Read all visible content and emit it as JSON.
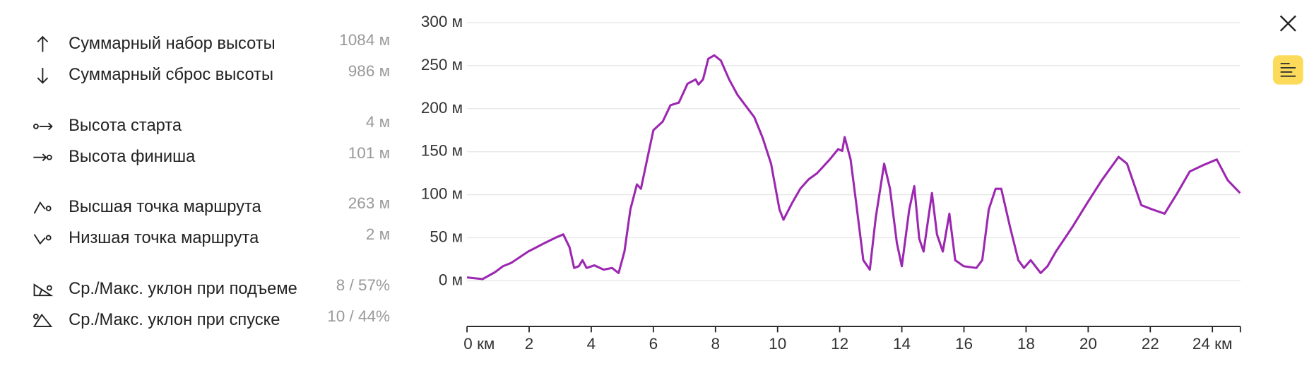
{
  "stats": [
    {
      "label": "Суммарный набор высоты",
      "value": "1084 м"
    },
    {
      "label": "Суммарный сброс высоты",
      "value": "986 м"
    },
    {
      "label": "Высота старта",
      "value": "4 м"
    },
    {
      "label": "Высота финиша",
      "value": "101 м"
    },
    {
      "label": "Высшая точка маршрута",
      "value": "263 м"
    },
    {
      "label": "Низшая точка маршрута",
      "value": "2 м"
    },
    {
      "label": "Ср./Макс. уклон при подъеме",
      "value": "8 / 57%"
    },
    {
      "label": "Ср./Макс. уклон при спуске",
      "value": "10 / 44%"
    }
  ],
  "chart_data": {
    "type": "line",
    "color": "#9c27b0",
    "grid": true,
    "x": [
      0,
      0.5,
      0.9,
      1.16,
      1.43,
      1.97,
      2.5,
      2.9,
      3.1,
      3.3,
      3.45,
      3.6,
      3.72,
      3.85,
      4.1,
      4.4,
      4.67,
      4.88,
      5.07,
      5.26,
      5.47,
      5.6,
      5.8,
      6.0,
      6.3,
      6.55,
      6.82,
      7.1,
      7.36,
      7.45,
      7.6,
      7.77,
      7.96,
      8.17,
      8.44,
      8.71,
      8.98,
      9.25,
      9.52,
      9.79,
      10.06,
      10.19,
      10.46,
      10.73,
      11.0,
      11.27,
      11.68,
      11.95,
      12.08,
      12.16,
      12.35,
      12.54,
      12.76,
      12.97,
      13.16,
      13.43,
      13.62,
      13.84,
      14.0,
      14.24,
      14.4,
      14.56,
      14.7,
      14.97,
      15.13,
      15.32,
      15.53,
      15.72,
      15.99,
      16.4,
      16.59,
      16.8,
      17.02,
      17.2,
      17.48,
      17.75,
      17.93,
      18.15,
      18.47,
      18.69,
      18.96,
      19.5,
      19.98,
      20.44,
      20.98,
      21.25,
      21.71,
      22.06,
      22.46,
      22.87,
      23.27,
      23.68,
      24.14,
      24.49,
      24.89
    ],
    "values": [
      4,
      2,
      10,
      17,
      21,
      34,
      44,
      51,
      54,
      39,
      15,
      17,
      24,
      15,
      18,
      13,
      15,
      9,
      34,
      83,
      112,
      107,
      141,
      175,
      185,
      204,
      207,
      229,
      234,
      228,
      234,
      258,
      262,
      256,
      234,
      216,
      203,
      190,
      166,
      136,
      83,
      71,
      90,
      107,
      118,
      125,
      141,
      153,
      151,
      167,
      141,
      88,
      24,
      13,
      73,
      136,
      107,
      44,
      17,
      83,
      110,
      49,
      34,
      102,
      54,
      34,
      78,
      24,
      17,
      15,
      24,
      83,
      107,
      107,
      63,
      24,
      15,
      24,
      9,
      17,
      34,
      63,
      91,
      117,
      144,
      136,
      88,
      83,
      78,
      102,
      127,
      134,
      141,
      117,
      102
    ],
    "xlim": [
      0,
      24.9
    ],
    "ylim": [
      -53,
      300
    ],
    "xticks": [
      {
        "value": 0,
        "label": "0 км"
      },
      2,
      4,
      6,
      8,
      10,
      12,
      14,
      16,
      18,
      20,
      22,
      {
        "value": 24,
        "label": "24 км"
      }
    ],
    "yticks": [
      {
        "value": 0,
        "label": "0 м"
      },
      {
        "value": 50,
        "label": "50 м"
      },
      {
        "value": 100,
        "label": "100 м"
      },
      {
        "value": 150,
        "label": "150 м"
      },
      {
        "value": 200,
        "label": "200 м"
      },
      {
        "value": 250,
        "label": "250 м"
      },
      {
        "value": 300,
        "label": "300 м"
      }
    ]
  }
}
